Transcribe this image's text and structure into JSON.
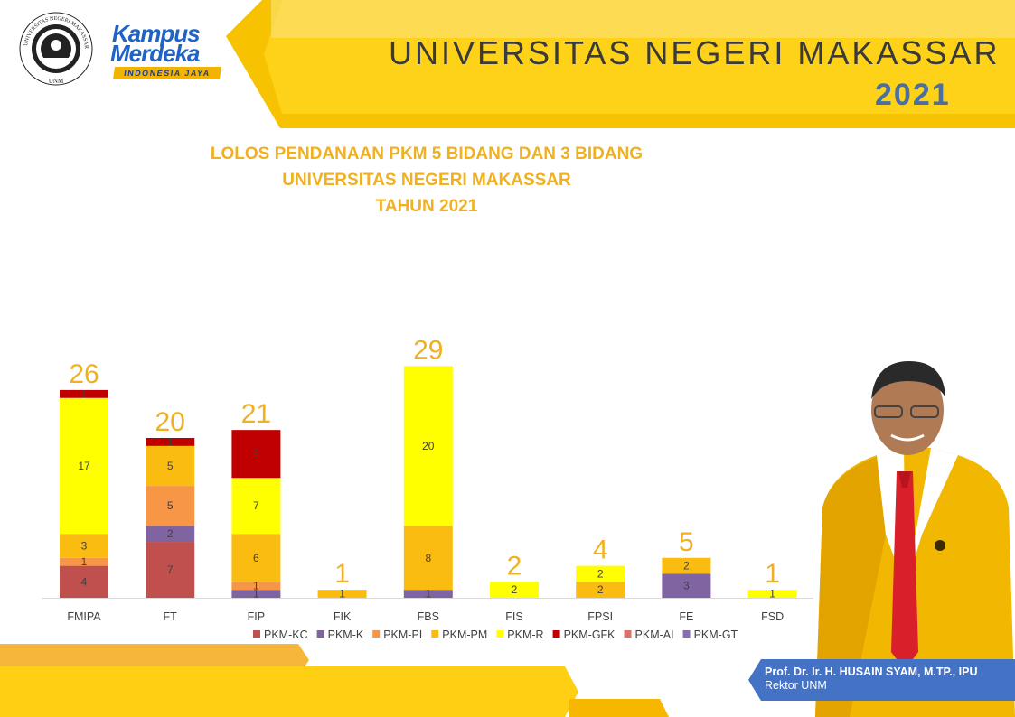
{
  "header": {
    "university": "UNIVERSITAS  NEGERI  MAKASSAR",
    "year": "2021",
    "unm_logo_text": "UNIVERSITAS NEGERI MAKASSAR",
    "unm_logo_abbr": "UNM",
    "km_line1": "Kampus",
    "km_line2": "Merdeka",
    "km_tagline": "INDONESIA JAYA"
  },
  "chart_data": {
    "type": "bar",
    "stacked": true,
    "title_lines": [
      "LOLOS PENDANAAN PKM 5 BIDANG DAN 3 BIDANG",
      "UNIVERSITAS NEGERI MAKASSAR",
      "TAHUN 2021"
    ],
    "categories": [
      "FMIPA",
      "FT",
      "FIP",
      "FIK",
      "FBS",
      "FIS",
      "FPSI",
      "FE",
      "FSD"
    ],
    "totals": [
      26,
      20,
      21,
      1,
      29,
      2,
      4,
      5,
      1
    ],
    "series": [
      {
        "name": "PKM-KC",
        "color": "#c0504d",
        "values": [
          4,
          7,
          0,
          0,
          0,
          0,
          0,
          0,
          0
        ]
      },
      {
        "name": "PKM-K",
        "color": "#8064a2",
        "values": [
          0,
          2,
          1,
          0,
          1,
          0,
          0,
          3,
          0
        ]
      },
      {
        "name": "PKM-PI",
        "color": "#f79646",
        "values": [
          1,
          5,
          1,
          0,
          0,
          0,
          0,
          0,
          0
        ]
      },
      {
        "name": "PKM-PM",
        "color": "#fbbc12",
        "values": [
          3,
          5,
          6,
          1,
          8,
          0,
          2,
          2,
          0
        ]
      },
      {
        "name": "PKM-R",
        "color": "#ffff00",
        "values": [
          17,
          0,
          7,
          0,
          20,
          2,
          2,
          0,
          1
        ]
      },
      {
        "name": "PKM-GFK",
        "color": "#c00000",
        "values": [
          1,
          1,
          6,
          0,
          0,
          0,
          0,
          0,
          0
        ]
      },
      {
        "name": "PKM-AI",
        "color": "#d9736a",
        "values": [
          0,
          0,
          0,
          0,
          0,
          0,
          0,
          0,
          0
        ]
      },
      {
        "name": "PKM-GT",
        "color": "#8a6fb0",
        "values": [
          0,
          0,
          0,
          0,
          0,
          0,
          0,
          0,
          0
        ]
      }
    ],
    "ylim": [
      0,
      29
    ],
    "grid": false,
    "legend_position": "bottom",
    "total_label_color": "#f0b020"
  },
  "caption": {
    "name": "Prof. Dr. Ir. H. HUSAIN SYAM, M.TP., IPU",
    "role": "Rektor UNM"
  }
}
